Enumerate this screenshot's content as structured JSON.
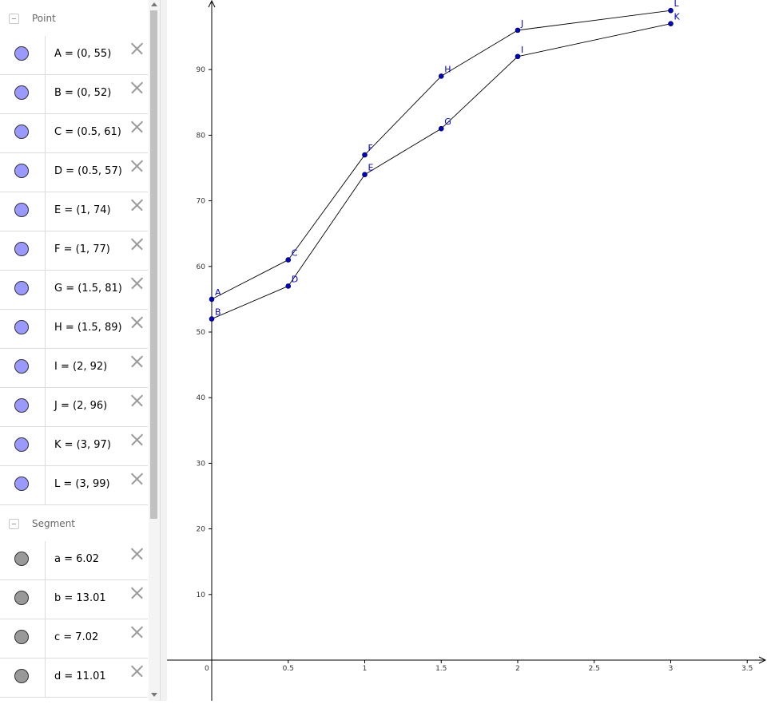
{
  "algebra": {
    "groups": [
      {
        "title": "Point",
        "items": [
          {
            "label": "A = (0, 55)",
            "color": "#9999ff"
          },
          {
            "label": "B = (0, 52)",
            "color": "#9999ff"
          },
          {
            "label": "C = (0.5, 61)",
            "color": "#9999ff"
          },
          {
            "label": "D = (0.5, 57)",
            "color": "#9999ff"
          },
          {
            "label": "E = (1, 74)",
            "color": "#9999ff"
          },
          {
            "label": "F = (1, 77)",
            "color": "#9999ff"
          },
          {
            "label": "G = (1.5, 81)",
            "color": "#9999ff"
          },
          {
            "label": "H = (1.5, 89)",
            "color": "#9999ff"
          },
          {
            "label": "I = (2, 92)",
            "color": "#9999ff"
          },
          {
            "label": "J = (2, 96)",
            "color": "#9999ff"
          },
          {
            "label": "K = (3, 97)",
            "color": "#9999ff"
          },
          {
            "label": "L = (3, 99)",
            "color": "#9999ff"
          }
        ]
      },
      {
        "title": "Segment",
        "items": [
          {
            "label": "a = 6.02",
            "color": "#999999"
          },
          {
            "label": "b = 13.01",
            "color": "#999999"
          },
          {
            "label": "c = 7.02",
            "color": "#999999"
          },
          {
            "label": "d = 11.01",
            "color": "#999999"
          }
        ]
      }
    ]
  },
  "graphics": {
    "x_ticks": [
      "0",
      "0.5",
      "1",
      "1.5",
      "2",
      "2.5",
      "3",
      "3.5"
    ],
    "y_ticks": [
      "10",
      "20",
      "30",
      "40",
      "50",
      "60",
      "70",
      "80",
      "90"
    ],
    "point_color": "#0000cc",
    "points": [
      {
        "name": "A",
        "x": 0,
        "y": 55
      },
      {
        "name": "B",
        "x": 0,
        "y": 52
      },
      {
        "name": "C",
        "x": 0.5,
        "y": 61
      },
      {
        "name": "D",
        "x": 0.5,
        "y": 57
      },
      {
        "name": "E",
        "x": 1,
        "y": 74
      },
      {
        "name": "F",
        "x": 1,
        "y": 77
      },
      {
        "name": "G",
        "x": 1.5,
        "y": 81
      },
      {
        "name": "H",
        "x": 1.5,
        "y": 89
      },
      {
        "name": "I",
        "x": 2,
        "y": 92
      },
      {
        "name": "J",
        "x": 2,
        "y": 96
      },
      {
        "name": "K",
        "x": 3,
        "y": 97
      },
      {
        "name": "L",
        "x": 3,
        "y": 99
      }
    ],
    "polylines": [
      [
        "A",
        "C",
        "F",
        "H",
        "J",
        "L"
      ],
      [
        "B",
        "D",
        "E",
        "G",
        "I",
        "K"
      ]
    ]
  }
}
